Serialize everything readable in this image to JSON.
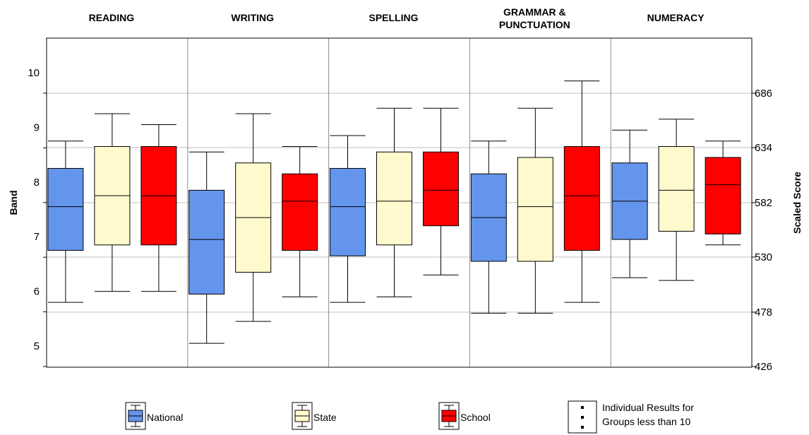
{
  "chart_data": {
    "type": "boxplot",
    "left_axis": {
      "label": "Band",
      "ticks": [
        "5",
        "6",
        "7",
        "8",
        "9",
        "10"
      ]
    },
    "right_axis": {
      "label": "Scaled Score",
      "ticks": [
        "426",
        "478",
        "530",
        "582",
        "634",
        "686"
      ]
    },
    "groups": [
      "READING",
      "WRITING",
      "SPELLING",
      "GRAMMAR &\nPUNCTUATION",
      "NUMERACY"
    ],
    "series": [
      {
        "name": "National",
        "color": "#6495ED",
        "boxes": [
          {
            "min": 5.8,
            "q1": 6.75,
            "median": 7.55,
            "q3": 8.25,
            "max": 8.75
          },
          {
            "min": 5.05,
            "q1": 5.95,
            "median": 6.95,
            "q3": 7.85,
            "max": 8.55
          },
          {
            "min": 5.8,
            "q1": 6.65,
            "median": 7.55,
            "q3": 8.25,
            "max": 8.85
          },
          {
            "min": 5.6,
            "q1": 6.55,
            "median": 7.35,
            "q3": 8.15,
            "max": 8.75
          },
          {
            "min": 6.25,
            "q1": 6.95,
            "median": 7.65,
            "q3": 8.35,
            "max": 8.95
          }
        ]
      },
      {
        "name": "State",
        "color": "#FFFACD",
        "boxes": [
          {
            "min": 6.0,
            "q1": 6.85,
            "median": 7.75,
            "q3": 8.65,
            "max": 9.25
          },
          {
            "min": 5.45,
            "q1": 6.35,
            "median": 7.35,
            "q3": 8.35,
            "max": 9.25
          },
          {
            "min": 5.9,
            "q1": 6.85,
            "median": 7.65,
            "q3": 8.55,
            "max": 9.35
          },
          {
            "min": 5.6,
            "q1": 6.55,
            "median": 7.55,
            "q3": 8.45,
            "max": 9.35
          },
          {
            "min": 6.2,
            "q1": 7.1,
            "median": 7.85,
            "q3": 8.65,
            "max": 9.15
          }
        ]
      },
      {
        "name": "School",
        "color": "#FF0000",
        "boxes": [
          {
            "min": 6.0,
            "q1": 6.85,
            "median": 7.75,
            "q3": 8.65,
            "max": 9.05
          },
          {
            "min": 5.9,
            "q1": 6.75,
            "median": 7.65,
            "q3": 8.15,
            "max": 8.65
          },
          {
            "min": 6.3,
            "q1": 7.2,
            "median": 7.85,
            "q3": 8.55,
            "max": 9.35
          },
          {
            "min": 5.8,
            "q1": 6.75,
            "median": 7.75,
            "q3": 8.65,
            "max": 9.85
          },
          {
            "min": 6.85,
            "q1": 7.05,
            "median": 7.95,
            "q3": 8.45,
            "max": 8.75
          }
        ]
      }
    ],
    "legend_extra": "Individual Results for\nGroups less than 10",
    "grid": true,
    "legend_position": "bottom"
  }
}
